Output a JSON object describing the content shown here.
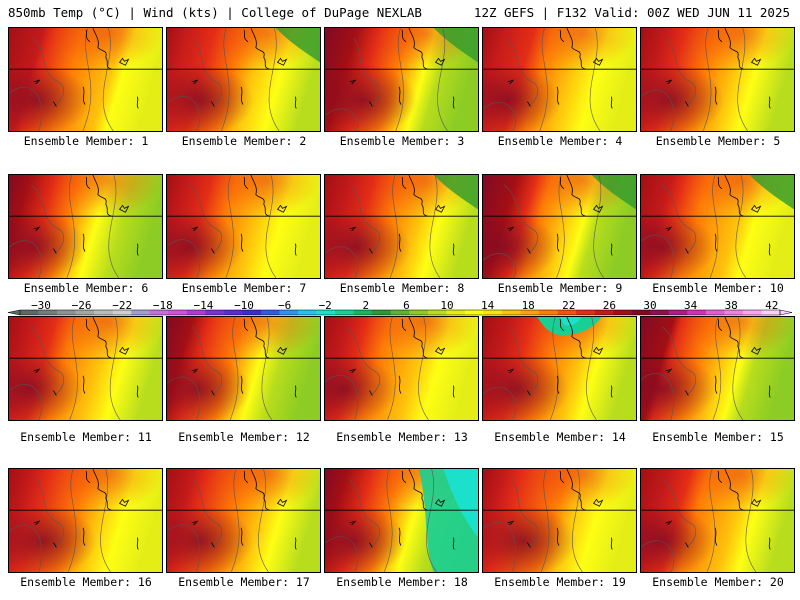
{
  "header": {
    "left": "850mb Temp (°C) | Wind (kts) | College of DuPage NEXLAB",
    "right": "12Z GEFS | F132 Valid: 00Z WED JUN 11 2025"
  },
  "colors": {
    "scale": [
      "#5d6a64",
      "#747f79",
      "#8a9490",
      "#a1a7a5",
      "#b8bdbb",
      "#cdd0cf",
      "#a59bd2",
      "#c56ee0",
      "#d54fdb",
      "#b23ad3",
      "#7e2fd1",
      "#5c2ccc",
      "#3a2fc3",
      "#2e5de0",
      "#2f94ec",
      "#22c3f0",
      "#1ae0cc",
      "#19cf93",
      "#18b562",
      "#2f9a2e",
      "#5ab52f",
      "#8ccc24",
      "#b8dd1d",
      "#e4ee16",
      "#fefe14",
      "#ffe310",
      "#ffc30c",
      "#ffa20a",
      "#ff7d06",
      "#f8520a",
      "#e32d16",
      "#c41a1a",
      "#a30f14",
      "#800a24",
      "#900f4e",
      "#b01a86",
      "#d22fc1",
      "#e55ad8",
      "#f27fe4",
      "#f9a4ee",
      "#fccff7"
    ],
    "land_default": "#ffa20a"
  },
  "colorbar": {
    "labels": [
      "−30",
      "−26",
      "−22",
      "−18",
      "−14",
      "−10",
      "−6",
      "−2",
      "2",
      "6",
      "10",
      "14",
      "18",
      "22",
      "26",
      "30",
      "34",
      "38",
      "42"
    ]
  },
  "panels": [
    {
      "label": "Ensemble Member: 1"
    },
    {
      "label": "Ensemble Member: 2"
    },
    {
      "label": "Ensemble Member: 3"
    },
    {
      "label": "Ensemble Member: 4"
    },
    {
      "label": "Ensemble Member: 5"
    },
    {
      "label": "Ensemble Member: 6"
    },
    {
      "label": "Ensemble Member: 7"
    },
    {
      "label": "Ensemble Member: 8"
    },
    {
      "label": "Ensemble Member: 9"
    },
    {
      "label": "Ensemble Member: 10"
    },
    {
      "label": "Ensemble Member: 11"
    },
    {
      "label": "Ensemble Member: 12"
    },
    {
      "label": "Ensemble Member: 13"
    },
    {
      "label": "Ensemble Member: 14"
    },
    {
      "label": "Ensemble Member: 15"
    },
    {
      "label": "Ensemble Member: 16"
    },
    {
      "label": "Ensemble Member: 17"
    },
    {
      "label": "Ensemble Member: 18"
    },
    {
      "label": "Ensemble Member: 19"
    },
    {
      "label": "Ensemble Member: 20"
    }
  ]
}
